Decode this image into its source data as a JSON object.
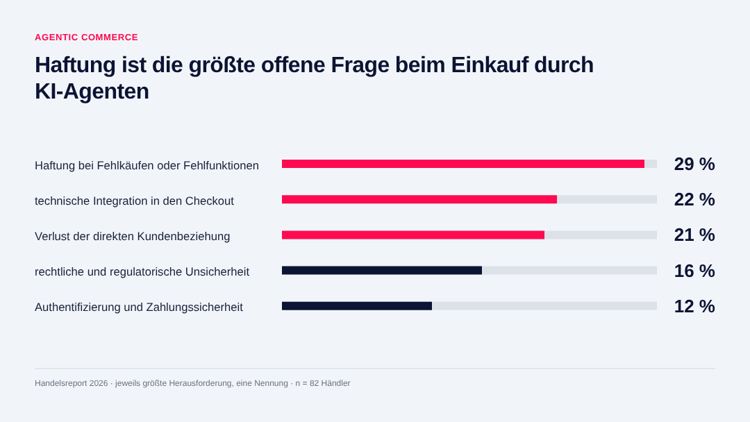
{
  "chart_data": {
    "type": "bar",
    "orientation": "horizontal",
    "subtitle": "AGENTIC COMMERCE",
    "title": "Haftung ist die größte offene Frage beim Einkauf durch KI-Agenten",
    "categories": [
      "Haftung bei Fehlkäufen oder Fehlfunktionen",
      "technische Integration in den Checkout",
      "Verlust der direkten Kundenbeziehung",
      "rechtliche und regulatorische Unsicherheit",
      "Authentifizierung und Zahlungssicherheit"
    ],
    "values": [
      29,
      22,
      21,
      16,
      12
    ],
    "colors": [
      "#ff0a50",
      "#ff0a50",
      "#ff0a50",
      "#0d1333",
      "#0d1333"
    ],
    "value_labels": [
      "29 %",
      "22 %",
      "21 %",
      "16 %",
      "12 %"
    ],
    "xlim": [
      0,
      30
    ],
    "annotations": [
      "Handelsreport 2026 · jeweils größte Herausforderung, eine Nennung · n = 82 Händler"
    ]
  }
}
